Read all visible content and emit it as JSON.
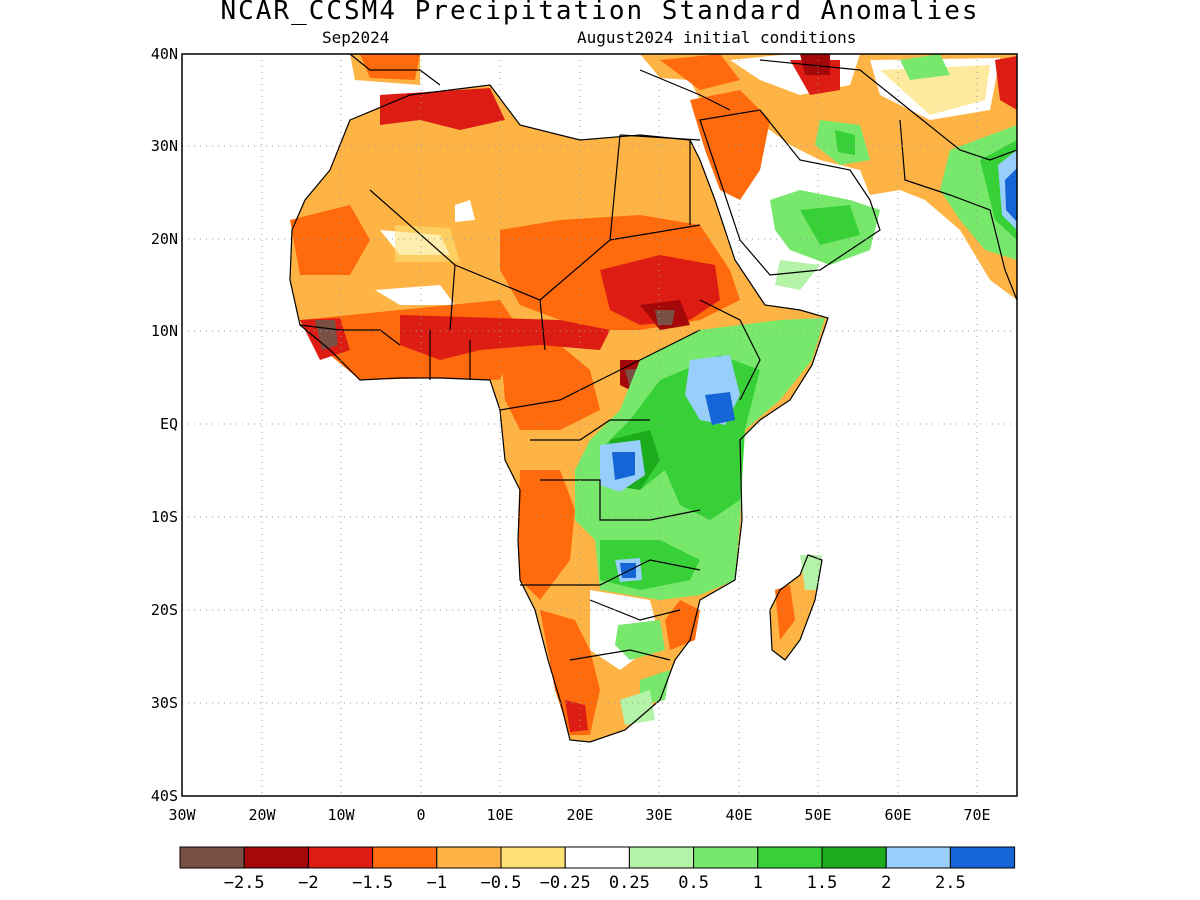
{
  "title": "NCAR_CCSM4 Precipitation Standard Anomalies",
  "valid_month": "Sep2024",
  "init_label": "August2024 initial conditions",
  "lat_labels": [
    "40N",
    "30N",
    "20N",
    "10N",
    "EQ",
    "10S",
    "20S",
    "30S",
    "40S"
  ],
  "lon_labels": [
    "30W",
    "20W",
    "10W",
    "0",
    "10E",
    "20E",
    "30E",
    "40E",
    "50E",
    "60E",
    "70E"
  ],
  "colorbar": {
    "colors": [
      "#7b5044",
      "#a50808",
      "#dd1c14",
      "#ff6a0c",
      "#fdb444",
      "#fee176",
      "#ffffff",
      "#b4f3a8",
      "#78e86c",
      "#37d037",
      "#1cad1c",
      "#98cffa",
      "#1565d6"
    ],
    "labels": [
      "−2.5",
      "−2",
      "−1.5",
      "−1",
      "−0.5",
      "−0.25",
      "0.25",
      "0.5",
      "1",
      "1.5",
      "2",
      "2.5"
    ]
  }
}
